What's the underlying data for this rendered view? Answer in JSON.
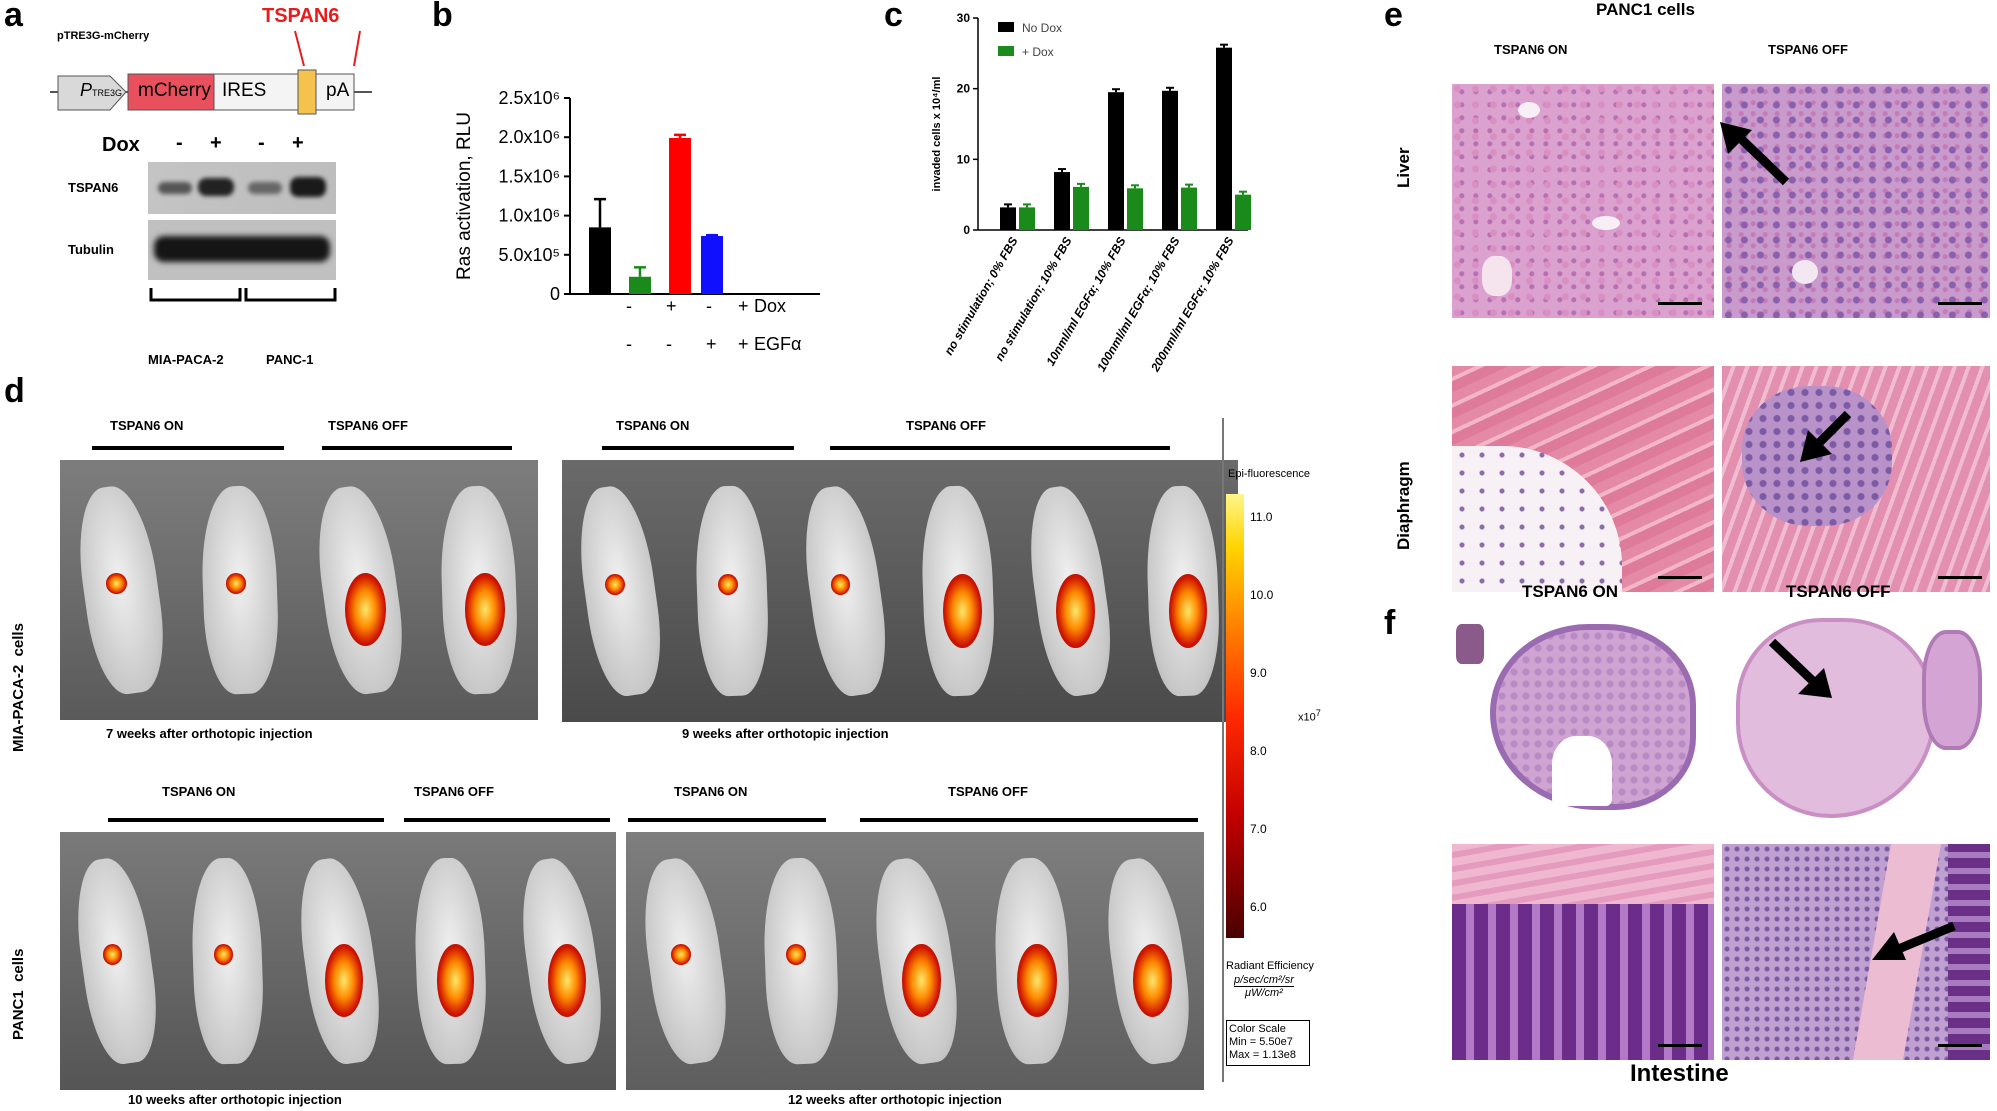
{
  "panels": {
    "a": {
      "letter": "a",
      "construct_label": "pTRE3G-mCherry",
      "gene_label": "TSPAN6",
      "promoter_label": "P",
      "promoter_sub": "TRE3G",
      "mcherry_label": "mCherry",
      "ires_label": "IRES",
      "pa_label": "pA",
      "dox_label": "Dox",
      "dox_signs": [
        "-",
        "+",
        "-",
        "+"
      ],
      "blot_rows": [
        "TSPAN6",
        "Tubulin"
      ],
      "cell_lines": [
        "MIA-PACA-2",
        "PANC-1"
      ]
    },
    "b": {
      "letter": "b",
      "dox_row": [
        "-",
        "+",
        "-",
        "+"
      ],
      "dox_label": "Dox",
      "egf_row": [
        "-",
        "-",
        "+",
        "+"
      ],
      "egf_label": "EGFα"
    },
    "c": {
      "letter": "c",
      "legend": [
        "No Dox",
        "+ Dox"
      ]
    },
    "d": {
      "letter": "d",
      "groups": {
        "on": "TSPAN6 ON",
        "off": "TSPAN6 OFF"
      },
      "row_labels": [
        "MIA-PACA-2  cells",
        "PANC1  cells"
      ],
      "captions": [
        "7 weeks after orthotopic injection",
        "9 weeks after orthotopic injection",
        "10 weeks after orthotopic injection",
        "12 weeks after orthotopic injection"
      ],
      "colorbar": {
        "title": "Epi-fluorescence",
        "ticks": [
          "11.0",
          "10.0",
          "9.0",
          "8.0",
          "7.0",
          "6.0"
        ],
        "multiplier": "x10",
        "multiplier_exp": "7",
        "unit_title": "Radiant Efficiency",
        "unit_num": "p/sec/cm²/sr",
        "unit_den": "μW/cm²",
        "scale_title": "Color Scale",
        "scale_min": "Min = 5.50e7",
        "scale_max": "Max = 1.13e8"
      }
    },
    "e": {
      "letter": "e",
      "title": "PANC1  cells",
      "col_on": "TSPAN6 ON",
      "col_off": "TSPAN6 OFF",
      "rows": [
        "Liver",
        "Diaphragm"
      ]
    },
    "f": {
      "letter": "f",
      "col_on": "TSPAN6 ON",
      "col_off": "TSPAN6 OFF",
      "bottom_label": "Intestine"
    }
  },
  "chart_data": [
    {
      "type": "bar",
      "panel": "b",
      "ylabel": "Ras activation, RLU",
      "yticks": [
        "0",
        "5.0x10⁵",
        "1.0x10⁶",
        "1.5x10⁶",
        "2.0x10⁶",
        "2.5x10⁶"
      ],
      "ylim": [
        0,
        2500000
      ],
      "values": [
        850000,
        220000,
        1990000,
        740000
      ],
      "errors": [
        360000,
        120000,
        40000,
        10000
      ],
      "colors": [
        "#000000",
        "#1a8a1a",
        "#ff0000",
        "#1010ff"
      ]
    },
    {
      "type": "bar",
      "panel": "c",
      "ylabel": "invaded cells x 10⁴/ml",
      "yticks": [
        "0",
        "10",
        "20",
        "30"
      ],
      "ylim": [
        0,
        30
      ],
      "categories": [
        "no stimulation; 0% FBS",
        "no stimulation; 10% FBS",
        "10nml/ml EGFα; 10% FBS",
        "100nml/ml EGFα; 10% FBS",
        "200nml/ml EGFα; 10% FBS"
      ],
      "series": [
        {
          "name": "No Dox",
          "values": [
            3.2,
            8.2,
            19.5,
            19.7,
            25.8
          ],
          "color": "#000000"
        },
        {
          "name": "+ Dox",
          "values": [
            3.2,
            6.1,
            5.9,
            6.0,
            5.0
          ],
          "color": "#1a8a1a"
        }
      ]
    }
  ]
}
